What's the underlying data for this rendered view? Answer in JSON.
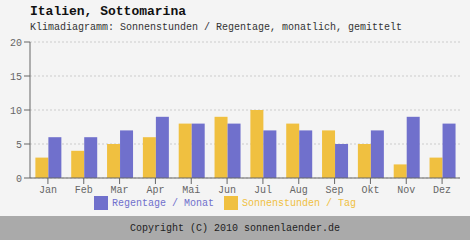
{
  "chart_data": {
    "type": "bar",
    "title": "Italien, Sottomarina",
    "subtitle": "Klimadiagramm: Sonnenstunden / Regentage, monatlich, gemittelt",
    "categories": [
      "Jan",
      "Feb",
      "Mar",
      "Apr",
      "Mai",
      "Jun",
      "Jul",
      "Aug",
      "Sep",
      "Okt",
      "Nov",
      "Dez"
    ],
    "series": [
      {
        "name": "Sonnenstunden / Tag",
        "color": "#f0c040",
        "values": [
          3,
          4,
          5,
          6,
          8,
          9,
          10,
          8,
          7,
          5,
          2,
          3
        ]
      },
      {
        "name": "Regentage / Monat",
        "color": "#7070cc",
        "values": [
          6,
          6,
          7,
          9,
          8,
          8,
          7,
          7,
          5,
          7,
          9,
          8
        ]
      }
    ],
    "ylim": [
      0,
      20
    ],
    "yticks": [
      0,
      5,
      10,
      15,
      20
    ],
    "grid": true,
    "legend": "bottom",
    "annotations": [
      "Copyright (C) 2010 sonnenlaender.de"
    ]
  }
}
